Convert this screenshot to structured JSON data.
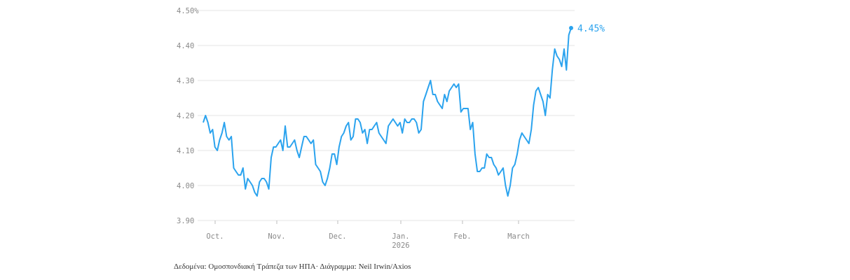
{
  "chart_data": {
    "type": "line",
    "title": "",
    "xlabel": "",
    "ylabel": "",
    "ylim": [
      3.9,
      4.5
    ],
    "y_ticks": [
      "3.90",
      "4.00",
      "4.10",
      "4.20",
      "4.30",
      "4.40",
      "4.50%"
    ],
    "x_ticks": [
      {
        "label": "Oct.",
        "sublabel": ""
      },
      {
        "label": "Nov.",
        "sublabel": ""
      },
      {
        "label": "Dec.",
        "sublabel": ""
      },
      {
        "label": "Jan.",
        "sublabel": "2026"
      },
      {
        "label": "Feb.",
        "sublabel": ""
      },
      {
        "label": "March",
        "sublabel": ""
      }
    ],
    "grid": true,
    "color": "#2ba3ee",
    "end_label": "4.45%",
    "series": [
      {
        "values": [
          4.18,
          4.2,
          4.18,
          4.15,
          4.16,
          4.11,
          4.1,
          4.13,
          4.15,
          4.18,
          4.14,
          4.13,
          4.14,
          4.05,
          4.04,
          4.03,
          4.03,
          4.05,
          3.99,
          4.02,
          4.01,
          4.0,
          3.98,
          3.97,
          4.01,
          4.02,
          4.02,
          4.01,
          3.99,
          4.08,
          4.11,
          4.11,
          4.12,
          4.13,
          4.1,
          4.17,
          4.11,
          4.11,
          4.12,
          4.13,
          4.1,
          4.08,
          4.11,
          4.14,
          4.14,
          4.13,
          4.12,
          4.13,
          4.06,
          4.05,
          4.04,
          4.01,
          4.0,
          4.02,
          4.05,
          4.09,
          4.09,
          4.06,
          4.11,
          4.14,
          4.15,
          4.17,
          4.18,
          4.13,
          4.14,
          4.19,
          4.19,
          4.18,
          4.15,
          4.16,
          4.12,
          4.16,
          4.16,
          4.17,
          4.18,
          4.15,
          4.14,
          4.13,
          4.12,
          4.17,
          4.18,
          4.19,
          4.18,
          4.17,
          4.18,
          4.15,
          4.19,
          4.18,
          4.18,
          4.19,
          4.19,
          4.18,
          4.15,
          4.16,
          4.24,
          4.26,
          4.28,
          4.3,
          4.26,
          4.26,
          4.24,
          4.23,
          4.22,
          4.26,
          4.24,
          4.27,
          4.28,
          4.29,
          4.28,
          4.29,
          4.21,
          4.22,
          4.22,
          4.22,
          4.16,
          4.18,
          4.09,
          4.04,
          4.04,
          4.05,
          4.05,
          4.09,
          4.08,
          4.08,
          4.06,
          4.05,
          4.03,
          4.04,
          4.05,
          4.0,
          3.97,
          4.0,
          4.05,
          4.06,
          4.09,
          4.13,
          4.15,
          4.14,
          4.13,
          4.12,
          4.16,
          4.23,
          4.27,
          4.28,
          4.26,
          4.24,
          4.2,
          4.26,
          4.25,
          4.33,
          4.39,
          4.37,
          4.36,
          4.34,
          4.39,
          4.33,
          4.43,
          4.45
        ]
      }
    ]
  },
  "footer": {
    "source": "Δεδομένα: Ομοσπονδιακή Τράπεζα των ΗΠΑ· Διάγραμμα: Neil Irwin/Axios"
  }
}
